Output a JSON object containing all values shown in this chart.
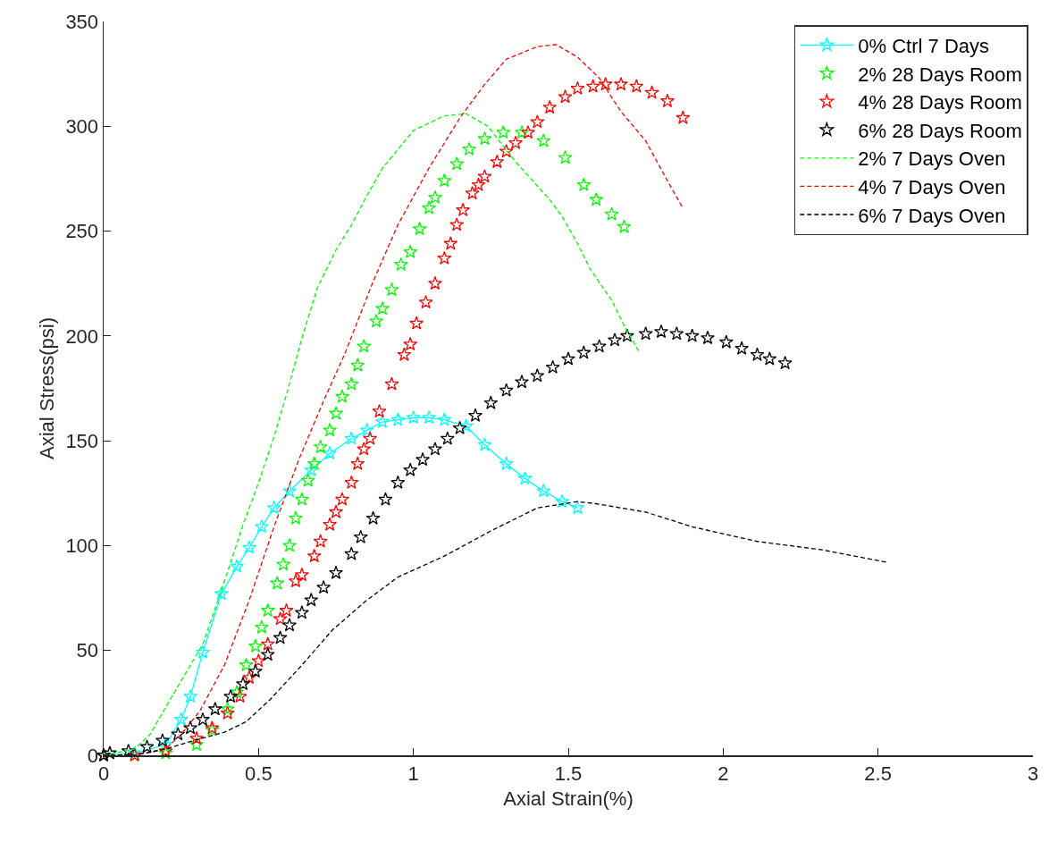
{
  "chart_data": {
    "type": "line",
    "xlabel": "Axial Strain(%)",
    "ylabel": "Axial Stress(psi)",
    "xlim": [
      0,
      3
    ],
    "xticks": [
      0,
      0.5,
      1,
      1.5,
      2,
      2.5,
      3
    ],
    "ylim": [
      0,
      350
    ],
    "yticks": [
      0,
      50,
      100,
      150,
      200,
      250,
      300,
      350
    ],
    "grid": false,
    "legend": "top right",
    "series": [
      {
        "name": "0% Ctrl 7 Days",
        "marker": "star",
        "line_style": "solid",
        "color": "#00ffff",
        "x": [
          0,
          0.1,
          0.2,
          0.25,
          0.28,
          0.32,
          0.38,
          0.43,
          0.47,
          0.51,
          0.55,
          0.6,
          0.67,
          0.73,
          0.8,
          0.85,
          0.9,
          0.95,
          1.0,
          1.05,
          1.1,
          1.17,
          1.23,
          1.3,
          1.36,
          1.42,
          1.48,
          1.53
        ],
        "values": [
          0,
          1,
          5,
          17,
          28,
          49,
          77,
          90,
          99,
          109,
          118,
          126,
          136,
          144,
          151,
          155,
          159,
          160,
          161,
          161,
          160,
          157,
          148,
          139,
          132,
          126,
          121,
          118
        ]
      },
      {
        "name": "2% 28 Days Room",
        "type": "scatter",
        "marker": "star",
        "color": "#00ff00",
        "x": [
          0,
          0.1,
          0.2,
          0.3,
          0.35,
          0.4,
          0.43,
          0.46,
          0.49,
          0.51,
          0.53,
          0.56,
          0.58,
          0.6,
          0.62,
          0.64,
          0.66,
          0.68,
          0.7,
          0.73,
          0.75,
          0.77,
          0.8,
          0.82,
          0.84,
          0.88,
          0.9,
          0.93,
          0.96,
          0.99,
          1.02,
          1.05,
          1.07,
          1.1,
          1.14,
          1.18,
          1.23,
          1.29,
          1.35,
          1.42,
          1.49,
          1.55,
          1.59,
          1.64,
          1.68
        ],
        "values": [
          0,
          0,
          1,
          5,
          12,
          22,
          30,
          43,
          52,
          61,
          69,
          82,
          91,
          100,
          113,
          122,
          131,
          139,
          147,
          155,
          163,
          171,
          177,
          186,
          195,
          207,
          213,
          222,
          234,
          240,
          251,
          261,
          266,
          274,
          282,
          289,
          294,
          297,
          297,
          293,
          285,
          272,
          265,
          258,
          252
        ]
      },
      {
        "name": "4% 28 Days Room",
        "type": "scatter",
        "marker": "star",
        "color": "#ff0000",
        "x": [
          0,
          0.1,
          0.2,
          0.3,
          0.35,
          0.4,
          0.44,
          0.47,
          0.5,
          0.53,
          0.57,
          0.59,
          0.62,
          0.64,
          0.68,
          0.7,
          0.73,
          0.75,
          0.77,
          0.8,
          0.82,
          0.84,
          0.86,
          0.89,
          0.93,
          0.97,
          0.99,
          1.01,
          1.04,
          1.07,
          1.1,
          1.12,
          1.14,
          1.16,
          1.19,
          1.21,
          1.23,
          1.27,
          1.3,
          1.33,
          1.37,
          1.4,
          1.44,
          1.49,
          1.53,
          1.58,
          1.62,
          1.67,
          1.72,
          1.77,
          1.82,
          1.87
        ],
        "values": [
          0,
          0,
          2,
          8,
          13,
          20,
          28,
          37,
          45,
          53,
          65,
          69,
          83,
          86,
          95,
          102,
          110,
          116,
          122,
          130,
          139,
          146,
          151,
          164,
          177,
          191,
          196,
          206,
          216,
          225,
          237,
          244,
          253,
          260,
          268,
          272,
          276,
          283,
          288,
          292,
          297,
          302,
          309,
          314,
          318,
          319,
          320,
          320,
          319,
          316,
          312,
          304
        ]
      },
      {
        "name": "6% 28 Days Room",
        "type": "scatter",
        "marker": "star",
        "color": "#000000",
        "x": [
          0,
          0.02,
          0.08,
          0.14,
          0.19,
          0.24,
          0.28,
          0.32,
          0.36,
          0.41,
          0.45,
          0.49,
          0.53,
          0.57,
          0.6,
          0.64,
          0.67,
          0.71,
          0.75,
          0.8,
          0.83,
          0.87,
          0.91,
          0.95,
          0.99,
          1.03,
          1.07,
          1.11,
          1.15,
          1.2,
          1.25,
          1.3,
          1.35,
          1.4,
          1.45,
          1.5,
          1.55,
          1.6,
          1.65,
          1.69,
          1.75,
          1.8,
          1.85,
          1.9,
          1.95,
          2.01,
          2.06,
          2.11,
          2.15,
          2.2
        ],
        "values": [
          0,
          1,
          2,
          4,
          7,
          10,
          13,
          17,
          22,
          28,
          34,
          40,
          48,
          56,
          62,
          68,
          74,
          80,
          87,
          96,
          104,
          113,
          122,
          130,
          136,
          141,
          146,
          151,
          156,
          162,
          168,
          174,
          178,
          181,
          185,
          189,
          192,
          195,
          198,
          200,
          201,
          202,
          201,
          200,
          199,
          197,
          194,
          191,
          189,
          187
        ]
      },
      {
        "name": "2% 7 Days Oven",
        "marker": "none",
        "line_style": "dashed",
        "color": "#00ff00",
        "x": [
          0,
          0.1,
          0.15,
          0.22,
          0.32,
          0.39,
          0.45,
          0.5,
          0.55,
          0.59,
          0.64,
          0.69,
          0.75,
          0.8,
          0.85,
          0.9,
          1.0,
          1.1,
          1.17,
          1.24,
          1.33,
          1.44,
          1.48,
          1.53,
          1.57,
          1.64,
          1.68,
          1.73
        ],
        "values": [
          0,
          3,
          10,
          28,
          53,
          83,
          110,
          130,
          152,
          172,
          199,
          223,
          241,
          253,
          267,
          280,
          298,
          305,
          306,
          300,
          283,
          265,
          257,
          244,
          232,
          217,
          205,
          192
        ]
      },
      {
        "name": "4% 7 Days Oven",
        "marker": "none",
        "line_style": "dashed",
        "color": "#ff0000",
        "x": [
          0,
          0.1,
          0.2,
          0.25,
          0.31,
          0.39,
          0.47,
          0.55,
          0.63,
          0.71,
          0.78,
          0.87,
          0.95,
          1.05,
          1.15,
          1.23,
          1.3,
          1.4,
          1.46,
          1.53,
          1.6,
          1.67,
          1.75,
          1.82,
          1.87
        ],
        "values": [
          0,
          0,
          3,
          10,
          21,
          43,
          74,
          109,
          141,
          169,
          192,
          226,
          253,
          280,
          304,
          320,
          332,
          338,
          339,
          333,
          323,
          307,
          293,
          274,
          261
        ]
      },
      {
        "name": "6% 7 Days Oven",
        "marker": "none",
        "line_style": "dashed",
        "color": "#000000",
        "x": [
          0,
          0.1,
          0.2,
          0.29,
          0.39,
          0.46,
          0.54,
          0.64,
          0.74,
          0.85,
          0.95,
          1.1,
          1.25,
          1.4,
          1.53,
          1.59,
          1.75,
          1.9,
          2.11,
          2.32,
          2.53
        ],
        "values": [
          0,
          0,
          3,
          7,
          11,
          16,
          27,
          43,
          60,
          74,
          85,
          95,
          107,
          118,
          121,
          120,
          116,
          109,
          102,
          98,
          92
        ]
      }
    ]
  }
}
